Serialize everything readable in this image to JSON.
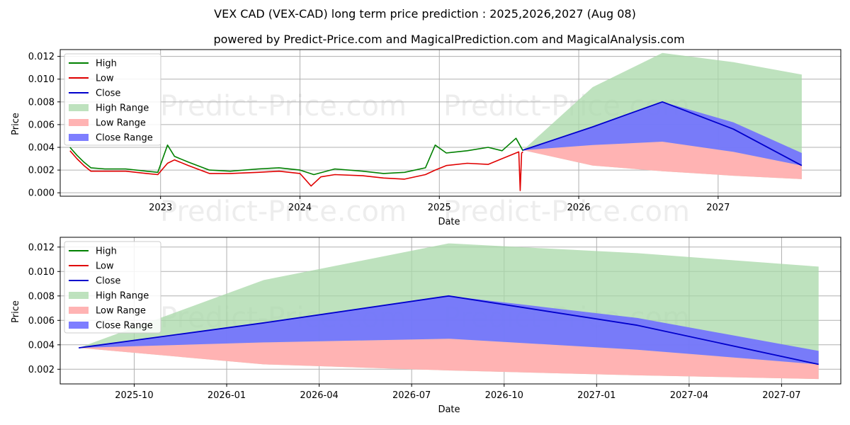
{
  "title": "VEX CAD (VEX-CAD) long term price prediction : 2025,2026,2027 (Aug 08)",
  "subtitle": "powered by Predict-Price.com and MagicalPrediction.com and MagicalAnalysis.com",
  "watermark": "Predict-Price.com",
  "colors": {
    "high": "#008000",
    "low": "#e00000",
    "close": "#0000cc",
    "high_range": "#a8d8a8",
    "low_range": "#ffb3b3",
    "close_range": "#7070ff"
  },
  "chart_data": [
    {
      "type": "line",
      "xlabel": "Date",
      "ylabel": "Price",
      "ylim": [
        -0.0003,
        0.0126
      ],
      "grid": true,
      "legend_position": "top-left",
      "legend": [
        "High",
        "Low",
        "Close",
        "High Range",
        "Low Range",
        "Close Range"
      ],
      "x_ticks": [
        {
          "t": 2023.0,
          "label": "2023"
        },
        {
          "t": 2024.0,
          "label": "2024"
        },
        {
          "t": 2025.0,
          "label": "2025"
        },
        {
          "t": 2026.0,
          "label": "2026"
        },
        {
          "t": 2027.0,
          "label": "2027"
        }
      ],
      "y_ticks": [
        {
          "v": 0.0,
          "label": "0.000"
        },
        {
          "v": 0.002,
          "label": "0.002"
        },
        {
          "v": 0.004,
          "label": "0.004"
        },
        {
          "v": 0.006,
          "label": "0.006"
        },
        {
          "v": 0.008,
          "label": "0.008"
        },
        {
          "v": 0.01,
          "label": "0.010"
        },
        {
          "v": 0.012,
          "label": "0.012"
        }
      ],
      "xlim": [
        2022.28,
        2027.88
      ],
      "history_high": [
        [
          2022.35,
          0.004
        ],
        [
          2022.4,
          0.0033
        ],
        [
          2022.45,
          0.0027
        ],
        [
          2022.5,
          0.0022
        ],
        [
          2022.6,
          0.0021
        ],
        [
          2022.75,
          0.0021
        ],
        [
          2022.9,
          0.0019
        ],
        [
          2022.98,
          0.0018
        ],
        [
          2023.05,
          0.0042
        ],
        [
          2023.1,
          0.0032
        ],
        [
          2023.2,
          0.0027
        ],
        [
          2023.35,
          0.002
        ],
        [
          2023.5,
          0.0019
        ],
        [
          2023.7,
          0.0021
        ],
        [
          2023.85,
          0.0022
        ],
        [
          2024.0,
          0.002
        ],
        [
          2024.1,
          0.0016
        ],
        [
          2024.25,
          0.0021
        ],
        [
          2024.45,
          0.0019
        ],
        [
          2024.6,
          0.0017
        ],
        [
          2024.75,
          0.0018
        ],
        [
          2024.9,
          0.0022
        ],
        [
          2024.97,
          0.0042
        ],
        [
          2025.05,
          0.0035
        ],
        [
          2025.2,
          0.0037
        ],
        [
          2025.35,
          0.004
        ],
        [
          2025.45,
          0.0037
        ],
        [
          2025.55,
          0.0048
        ],
        [
          2025.6,
          0.0037
        ]
      ],
      "history_low": [
        [
          2022.35,
          0.0037
        ],
        [
          2022.4,
          0.003
        ],
        [
          2022.45,
          0.0024
        ],
        [
          2022.5,
          0.0019
        ],
        [
          2022.6,
          0.0019
        ],
        [
          2022.75,
          0.0019
        ],
        [
          2022.9,
          0.0017
        ],
        [
          2022.98,
          0.0016
        ],
        [
          2023.05,
          0.0026
        ],
        [
          2023.1,
          0.0029
        ],
        [
          2023.2,
          0.0024
        ],
        [
          2023.35,
          0.0017
        ],
        [
          2023.5,
          0.0017
        ],
        [
          2023.7,
          0.0018
        ],
        [
          2023.85,
          0.0019
        ],
        [
          2024.0,
          0.0017
        ],
        [
          2024.08,
          0.0006
        ],
        [
          2024.15,
          0.0014
        ],
        [
          2024.25,
          0.0016
        ],
        [
          2024.45,
          0.0015
        ],
        [
          2024.6,
          0.0013
        ],
        [
          2024.75,
          0.0012
        ],
        [
          2024.9,
          0.0016
        ],
        [
          2024.97,
          0.002
        ],
        [
          2025.05,
          0.0024
        ],
        [
          2025.2,
          0.0026
        ],
        [
          2025.35,
          0.0025
        ],
        [
          2025.45,
          0.003
        ],
        [
          2025.57,
          0.0036
        ],
        [
          2025.58,
          0.0002
        ],
        [
          2025.59,
          0.0035
        ],
        [
          2025.6,
          0.0036
        ]
      ],
      "forecast_dates": [
        2025.6,
        2026.1,
        2026.6,
        2027.11,
        2027.6
      ],
      "forecast_close": [
        0.00375,
        0.0058,
        0.008,
        0.0056,
        0.0024
      ],
      "forecast_high_range_upper": [
        0.00375,
        0.0093,
        0.0123,
        0.0115,
        0.0104
      ],
      "forecast_close_range_upper": [
        0.00375,
        0.0058,
        0.008,
        0.0062,
        0.0035
      ],
      "forecast_close_range_lower": [
        0.00375,
        0.0042,
        0.0045,
        0.0036,
        0.0024
      ],
      "forecast_low_range_lower": [
        0.00375,
        0.0024,
        0.0019,
        0.0015,
        0.0012
      ]
    },
    {
      "type": "line",
      "xlabel": "Date",
      "ylabel": "Price",
      "ylim": [
        0.0008,
        0.0128
      ],
      "grid": true,
      "legend_position": "top-left",
      "legend": [
        "High",
        "Low",
        "Close",
        "High Range",
        "Low Range",
        "Close Range"
      ],
      "x_ticks": [
        {
          "t": 2025.75,
          "label": "2025-10"
        },
        {
          "t": 2026.0,
          "label": "2026-01"
        },
        {
          "t": 2026.25,
          "label": "2026-04"
        },
        {
          "t": 2026.5,
          "label": "2026-07"
        },
        {
          "t": 2026.75,
          "label": "2026-10"
        },
        {
          "t": 2027.0,
          "label": "2027-01"
        },
        {
          "t": 2027.25,
          "label": "2027-04"
        },
        {
          "t": 2027.5,
          "label": "2027-07"
        }
      ],
      "y_ticks": [
        {
          "v": 0.002,
          "label": "0.002"
        },
        {
          "v": 0.004,
          "label": "0.004"
        },
        {
          "v": 0.006,
          "label": "0.006"
        },
        {
          "v": 0.008,
          "label": "0.008"
        },
        {
          "v": 0.01,
          "label": "0.010"
        },
        {
          "v": 0.012,
          "label": "0.012"
        }
      ],
      "xlim": [
        2025.55,
        2027.66
      ],
      "history_high": [],
      "history_low": [],
      "forecast_dates": [
        2025.6,
        2026.1,
        2026.6,
        2027.11,
        2027.6
      ],
      "forecast_close": [
        0.00375,
        0.0058,
        0.008,
        0.0056,
        0.0024
      ],
      "forecast_high_range_upper": [
        0.00375,
        0.0093,
        0.0123,
        0.0115,
        0.0104
      ],
      "forecast_close_range_upper": [
        0.00375,
        0.0058,
        0.008,
        0.0062,
        0.0035
      ],
      "forecast_close_range_lower": [
        0.00375,
        0.0042,
        0.0045,
        0.0036,
        0.0024
      ],
      "forecast_low_range_lower": [
        0.00375,
        0.0024,
        0.0019,
        0.0015,
        0.0012
      ]
    }
  ]
}
